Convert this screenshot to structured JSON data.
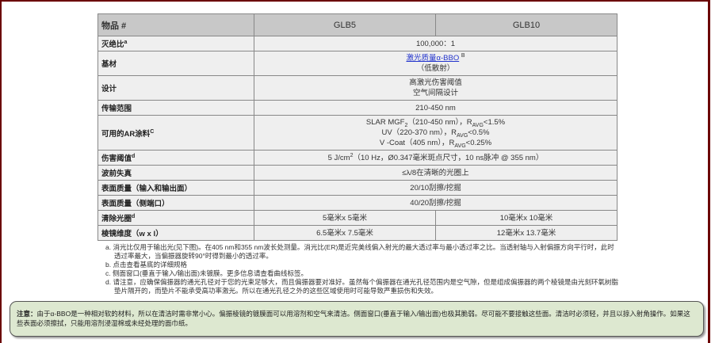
{
  "colors": {
    "frame": "#6b0000",
    "header_bg": "#c8c8c8",
    "cell_bg": "#efefef",
    "callout_bg": "#dde8d0",
    "link": "#2233cc"
  },
  "table": {
    "headers": [
      "物品 #",
      "GLB5",
      "GLB10"
    ],
    "rows": {
      "extinction": {
        "label": "灭绝比",
        "sup": "a",
        "value": "100,000：1"
      },
      "substrate": {
        "label": "基材",
        "link": "激光质量α-BBO",
        "sup": "B",
        "line2": "（低散射）"
      },
      "design": {
        "label": "设计",
        "line1": "高激光伤害阈值",
        "line2": "空气间隔设计"
      },
      "transmission": {
        "label": "传输范围",
        "value": "210-450 nm"
      },
      "ar": {
        "label": "可用的AR涂料",
        "sup": "C",
        "l1a": "SLAR MGF",
        "l1sub": "2",
        "l1b": "（210-450 nm），R",
        "l1avg": "AVG",
        "l1c": "<1.5%",
        "l2a": "UV（220-370 nm），R",
        "l2avg": "AVG",
        "l2c": "<0.5%",
        "l3a": "V -Coat（405 nm），R",
        "l3avg": "AVG",
        "l3c": "<0.25%"
      },
      "damage": {
        "label": "伤害阈值",
        "sup": "d",
        "a": "5 J/cm",
        "sup2": "2",
        "b": "（10 Hz，Ø0.347毫米斑点尺寸，10 ns脉冲 @ 355 nm）"
      },
      "wavefront": {
        "label": "波前失真",
        "value": "≤λ/8在清晰的光圈上"
      },
      "surface_io": {
        "label": "表面质量（输入和输出面）",
        "value": "20/10刮擦/挖掘"
      },
      "surface_side": {
        "label": "表面质量（侧端口）",
        "value": "40/20刮擦/挖掘"
      },
      "aperture": {
        "label": "清除光圈",
        "sup": "d",
        "glb5": "5毫米x 5毫米",
        "glb10": "10毫米x 10毫米"
      },
      "dims": {
        "label": "棱镜维度（w x l）",
        "glb5": "6.5毫米x 7.5毫米",
        "glb10": "12毫米x 13.7毫米"
      }
    }
  },
  "notes": [
    "a. 消光比仅用于输出光(见下图)。在405 nm和355 nm波长处测量。消光比(ER)是近完美线偏入射光的最大透过率与最小透过率之比。当透射轴与入射偏振方向平行时，此时透过率最大，当偏振器旋转90°时得到最小的透过率。",
    "b. 点击查看基底的详细规格",
    "c. 侧面窗口(垂直于输入/输出面)未镀膜。更多信息请查看曲线标签。",
    "d. 请注意，应确保偏振器的通光孔径对于您的光束足够大，而且偏振器要对准好。虽然每个偏振器在通光孔径范围内是空气隙，但是组成偏振器的两个棱镜是由光刻环氧树脂垫片隔开的，而垫片不能承受高功率激光。所以在通光孔径之外的这些区域使用时可能导致严重损伤和失效。"
  ],
  "callout": {
    "label": "注意：",
    "text": "由于α-BBO是一种相对软的材料，所以在清洁时需非常小心。偏振棱镜的镀膜面可以用溶剂和空气来清洁。侧面窗口(垂直于输入/输出面)也极其脆弱。尽可能不要接触这些面。清洁时必须轻，并且以掠入射角操作。如果这些表面必须擦拭，只能用溶剂浸湿棉或未经处理的面巾纸。"
  }
}
